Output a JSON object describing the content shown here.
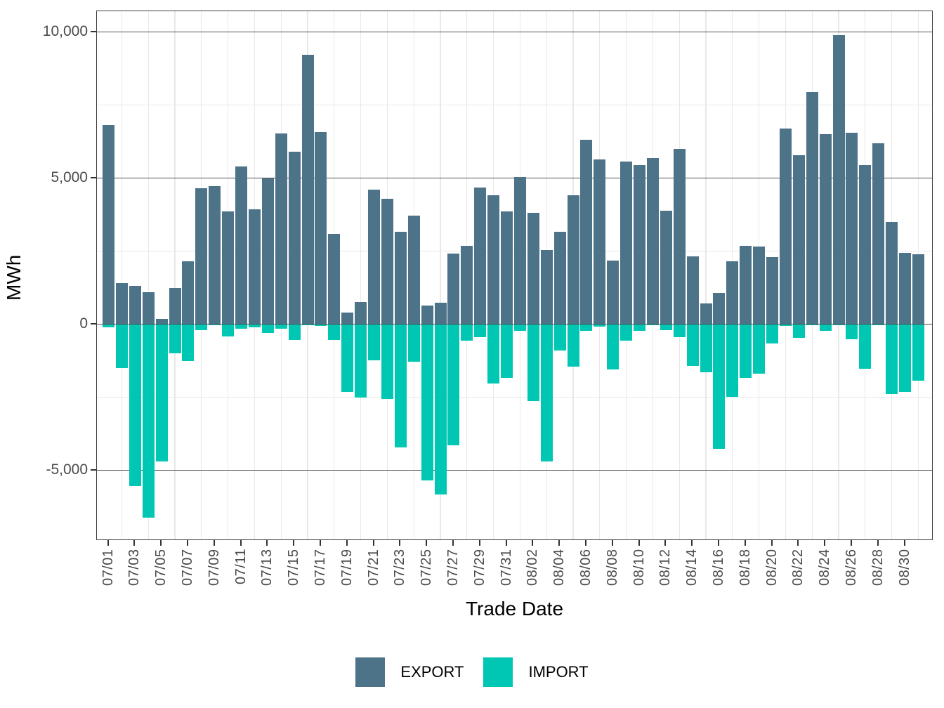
{
  "axes": {
    "x_title": "Trade Date",
    "y_title": "MWh"
  },
  "legend": {
    "export_label": "EXPORT",
    "import_label": "IMPORT"
  },
  "colors": {
    "export": "#4d7389",
    "import": "#00c7b3",
    "grid_major": "#525252",
    "grid_minor": "#e8e8e8",
    "tick_text": "#4a4a4a"
  },
  "chart_data": {
    "type": "bar",
    "title": "",
    "xlabel": "Trade Date",
    "ylabel": "MWh",
    "ylim": [
      -7420,
      10700
    ],
    "grid": "horizontal majors dark at every 5000; light minors at 2500 intervals and between date ticks",
    "legend_position": "bottom",
    "categories": [
      "07/01",
      "07/02",
      "07/03",
      "07/04",
      "07/05",
      "07/06",
      "07/07",
      "07/08",
      "07/09",
      "07/10",
      "07/11",
      "07/12",
      "07/13",
      "07/14",
      "07/15",
      "07/16",
      "07/17",
      "07/18",
      "07/19",
      "07/20",
      "07/21",
      "07/22",
      "07/23",
      "07/24",
      "07/25",
      "07/26",
      "07/27",
      "07/28",
      "07/29",
      "07/30",
      "07/31",
      "08/01",
      "08/02",
      "08/03",
      "08/04",
      "08/05",
      "08/06",
      "08/07",
      "08/08",
      "08/09",
      "08/10",
      "08/11",
      "08/12",
      "08/13",
      "08/14",
      "08/15",
      "08/16",
      "08/17",
      "08/18",
      "08/19",
      "08/20",
      "08/21",
      "08/22",
      "08/23",
      "08/24",
      "08/25",
      "08/26",
      "08/27",
      "08/28",
      "08/29",
      "08/30",
      "08/31"
    ],
    "series": [
      {
        "name": "EXPORT",
        "color": "#4d7389",
        "values": [
          6820,
          1410,
          1320,
          1100,
          170,
          1250,
          2160,
          4650,
          4720,
          3860,
          5400,
          3940,
          5000,
          6520,
          5900,
          9220,
          6580,
          3100,
          390,
          760,
          4610,
          4280,
          3150,
          3720,
          640,
          740,
          2420,
          2670,
          4670,
          4410,
          3860,
          5040,
          3820,
          2530,
          3150,
          4410,
          6310,
          5640,
          2180,
          5570,
          5450,
          5680,
          3890,
          6000,
          2310,
          700,
          1060,
          2160,
          2670,
          2660,
          2300,
          6690,
          5770,
          7950,
          6510,
          9880,
          6550,
          5450,
          6190,
          3490,
          2450,
          2390
        ]
      },
      {
        "name": "IMPORT",
        "color": "#00c7b3",
        "values": [
          -100,
          -1510,
          -5540,
          -6630,
          -4690,
          -1000,
          -1250,
          -200,
          -40,
          -420,
          -150,
          -100,
          -310,
          -160,
          -550,
          -30,
          -70,
          -530,
          -2310,
          -2510,
          -1230,
          -2550,
          -4220,
          -1280,
          -5360,
          -5820,
          -4140,
          -560,
          -450,
          -2030,
          -1830,
          -230,
          -2640,
          -4710,
          -900,
          -1460,
          -230,
          -80,
          -1540,
          -560,
          -240,
          -40,
          -200,
          -440,
          -1440,
          -1640,
          -4260,
          -2490,
          -1840,
          -1700,
          -660,
          -60,
          -470,
          -30,
          -230,
          -20,
          -510,
          -1530,
          -20,
          -2390,
          -2310,
          -1940
        ]
      }
    ],
    "y_ticks": [
      {
        "value": 10000,
        "label": "10,000"
      },
      {
        "value": 5000,
        "label": "5,000"
      },
      {
        "value": 0,
        "label": "0"
      },
      {
        "value": -5000,
        "label": "-5,000"
      }
    ],
    "y_minor_ticks": [
      7500,
      2500,
      -2500
    ],
    "x_ticks": [
      "07/01",
      "07/03",
      "07/05",
      "07/07",
      "07/09",
      "07/11",
      "07/13",
      "07/15",
      "07/17",
      "07/19",
      "07/21",
      "07/23",
      "07/25",
      "07/27",
      "07/29",
      "07/31",
      "08/02",
      "08/04",
      "08/06",
      "08/08",
      "08/10",
      "08/12",
      "08/14",
      "08/16",
      "08/18",
      "08/20",
      "08/22",
      "08/24",
      "08/26",
      "08/28",
      "08/30"
    ]
  }
}
